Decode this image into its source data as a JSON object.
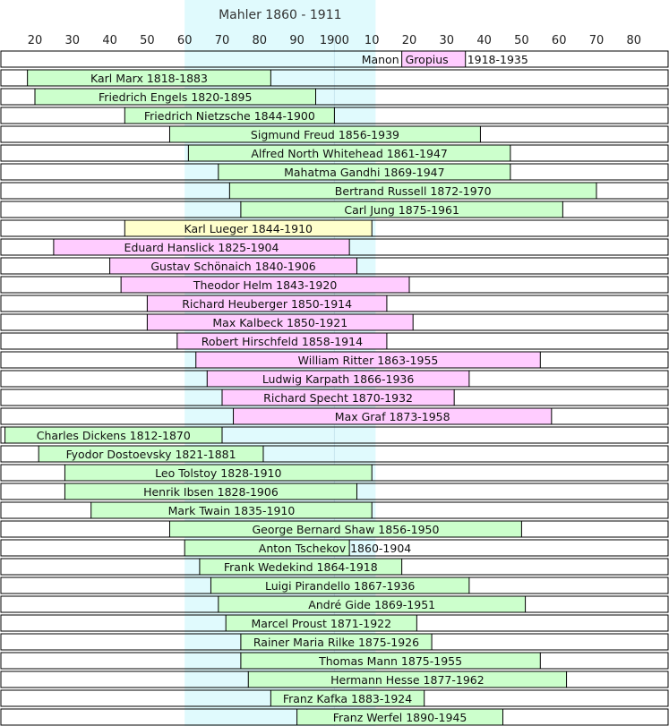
{
  "chart_data": {
    "type": "timeline",
    "title": "Mahler  1860 - 1911",
    "highlight": {
      "start": 1860,
      "end": 1911,
      "color": "#e0fafd"
    },
    "x_range": [
      1810,
      1990
    ],
    "ticks": [
      {
        "year": 1820,
        "label": "20"
      },
      {
        "year": 1830,
        "label": "30"
      },
      {
        "year": 1840,
        "label": "40"
      },
      {
        "year": 1850,
        "label": "50"
      },
      {
        "year": 1860,
        "label": "60"
      },
      {
        "year": 1870,
        "label": "70"
      },
      {
        "year": 1880,
        "label": "80"
      },
      {
        "year": 1890,
        "label": "90"
      },
      {
        "year": 1900,
        "label": "1900"
      },
      {
        "year": 1910,
        "label": "10"
      },
      {
        "year": 1920,
        "label": "20"
      },
      {
        "year": 1930,
        "label": "30"
      },
      {
        "year": 1940,
        "label": "40"
      },
      {
        "year": 1950,
        "label": "50"
      },
      {
        "year": 1960,
        "label": "60"
      },
      {
        "year": 1970,
        "label": "70"
      },
      {
        "year": 1980,
        "label": "80"
      }
    ],
    "colors": {
      "green": "#ccffcc",
      "pink": "#ffccff",
      "yellow": "#ffffcc"
    },
    "rows": [
      {
        "name": "Manon Gropius",
        "start": 1918,
        "end": 1935,
        "color": "pink",
        "split": true,
        "name_a": "Manon",
        "name_b": "Gropius",
        "dates": "1918-1935"
      },
      {
        "name": "Karl Marx",
        "start": 1818,
        "end": 1883,
        "color": "green",
        "label": "Karl Marx 1818-1883"
      },
      {
        "name": "Friedrich Engels",
        "start": 1820,
        "end": 1895,
        "color": "green",
        "label": "Friedrich Engels 1820-1895"
      },
      {
        "name": "Friedrich Nietzsche",
        "start": 1844,
        "end": 1900,
        "color": "green",
        "label": "Friedrich Nietzsche 1844-1900"
      },
      {
        "name": "Sigmund Freud",
        "start": 1856,
        "end": 1939,
        "color": "green",
        "label": "Sigmund Freud 1856-1939"
      },
      {
        "name": "Alfred North Whitehead",
        "start": 1861,
        "end": 1947,
        "color": "green",
        "label": "Alfred North Whitehead 1861-1947"
      },
      {
        "name": "Mahatma Gandhi",
        "start": 1869,
        "end": 1947,
        "color": "green",
        "label": "Mahatma Gandhi 1869-1947"
      },
      {
        "name": "Bertrand Russell",
        "start": 1872,
        "end": 1970,
        "color": "green",
        "label": "Bertrand Russell 1872-1970"
      },
      {
        "name": "Carl Jung",
        "start": 1875,
        "end": 1961,
        "color": "green",
        "label": "Carl Jung 1875-1961"
      },
      {
        "name": "Karl Lueger",
        "start": 1844,
        "end": 1910,
        "color": "yellow",
        "label": "Karl Lueger 1844-1910"
      },
      {
        "name": "Eduard Hanslick",
        "start": 1825,
        "end": 1904,
        "color": "pink",
        "label": "Eduard Hanslick 1825-1904"
      },
      {
        "name": "Gustav Schönaich",
        "start": 1840,
        "end": 1906,
        "color": "pink",
        "label": "Gustav Schönaich 1840-1906"
      },
      {
        "name": "Theodor Helm",
        "start": 1843,
        "end": 1920,
        "color": "pink",
        "label": "Theodor Helm 1843-1920"
      },
      {
        "name": "Richard Heuberger",
        "start": 1850,
        "end": 1914,
        "color": "pink",
        "label": "Richard Heuberger 1850-1914"
      },
      {
        "name": "Max Kalbeck",
        "start": 1850,
        "end": 1921,
        "color": "pink",
        "label": "Max Kalbeck 1850-1921"
      },
      {
        "name": "Robert Hirschfeld",
        "start": 1858,
        "end": 1914,
        "color": "pink",
        "label": "Robert Hirschfeld 1858-1914"
      },
      {
        "name": "William Ritter",
        "start": 1863,
        "end": 1955,
        "color": "pink",
        "label": "William Ritter 1863-1955"
      },
      {
        "name": "Ludwig Karpath",
        "start": 1866,
        "end": 1936,
        "color": "pink",
        "label": "Ludwig Karpath 1866-1936"
      },
      {
        "name": "Richard Specht",
        "start": 1870,
        "end": 1932,
        "color": "pink",
        "label": "Richard Specht 1870-1932"
      },
      {
        "name": "Max Graf",
        "start": 1873,
        "end": 1958,
        "color": "pink",
        "label": "Max Graf 1873-1958"
      },
      {
        "name": "Charles Dickens",
        "start": 1812,
        "end": 1870,
        "color": "green",
        "label": "Charles Dickens 1812-1870"
      },
      {
        "name": "Fyodor Dostoevsky",
        "start": 1821,
        "end": 1881,
        "color": "green",
        "label": "Fyodor Dostoevsky 1821-1881"
      },
      {
        "name": "Leo Tolstoy",
        "start": 1828,
        "end": 1910,
        "color": "green",
        "label": "Leo Tolstoy 1828-1910"
      },
      {
        "name": "Henrik Ibsen",
        "start": 1828,
        "end": 1906,
        "color": "green",
        "label": "Henrik Ibsen 1828-1906"
      },
      {
        "name": "Mark Twain",
        "start": 1835,
        "end": 1910,
        "color": "green",
        "label": "Mark Twain 1835-1910"
      },
      {
        "name": "George Bernard Shaw",
        "start": 1856,
        "end": 1950,
        "color": "green",
        "label": "George Bernard Shaw 1856-1950"
      },
      {
        "name": "Anton Tschekov",
        "start": 1860,
        "end": 1904,
        "color": "green",
        "split": true,
        "name_a": "Anton Tschekov",
        "dates": "1860-1904"
      },
      {
        "name": "Frank Wedekind",
        "start": 1864,
        "end": 1918,
        "color": "green",
        "label": "Frank Wedekind 1864-1918"
      },
      {
        "name": "Luigi Pirandello",
        "start": 1867,
        "end": 1936,
        "color": "green",
        "label": "Luigi Pirandello 1867-1936"
      },
      {
        "name": "André Gide",
        "start": 1869,
        "end": 1951,
        "color": "green",
        "label": "André Gide 1869-1951"
      },
      {
        "name": "Marcel Proust",
        "start": 1871,
        "end": 1922,
        "color": "green",
        "label": "Marcel Proust 1871-1922"
      },
      {
        "name": "Rainer Maria Rilke",
        "start": 1875,
        "end": 1926,
        "color": "green",
        "label": "Rainer Maria Rilke 1875-1926"
      },
      {
        "name": "Thomas Mann",
        "start": 1875,
        "end": 1955,
        "color": "green",
        "label": "Thomas Mann 1875-1955"
      },
      {
        "name": "Hermann Hesse",
        "start": 1877,
        "end": 1962,
        "color": "green",
        "label": "Hermann Hesse 1877-1962"
      },
      {
        "name": "Franz Kafka",
        "start": 1883,
        "end": 1924,
        "color": "green",
        "label": "Franz Kafka 1883-1924"
      },
      {
        "name": "Franz Werfel",
        "start": 1890,
        "end": 1945,
        "color": "green",
        "label": "Franz Werfel 1890-1945"
      }
    ]
  }
}
